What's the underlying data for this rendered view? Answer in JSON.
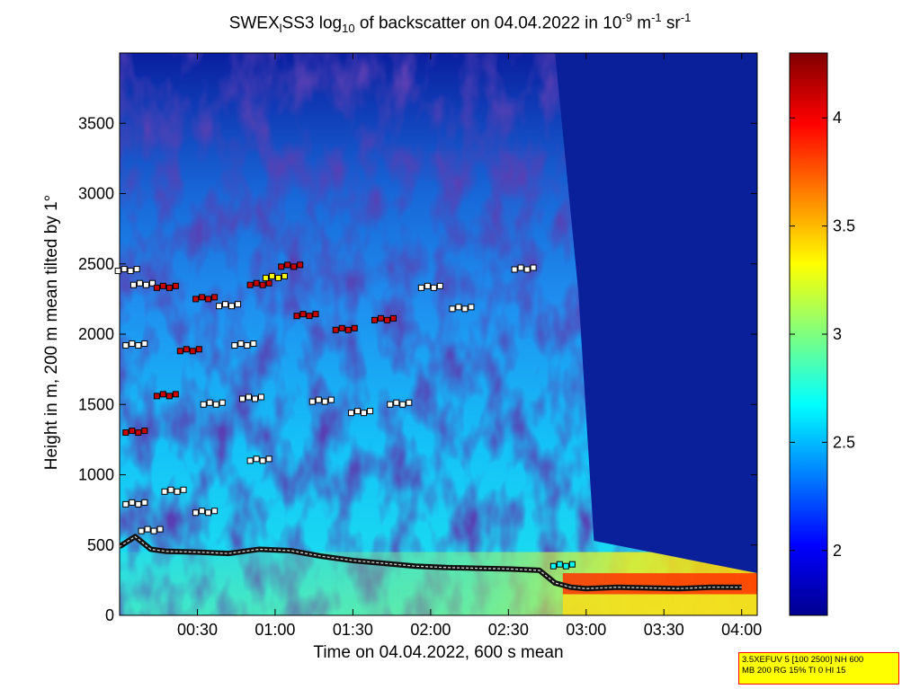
{
  "title": {
    "prefix": "SWEX",
    "sub1": "l",
    "part2": "SS3 log",
    "sub2": "10",
    "part3": " of backscatter on 04.04.2022 in 10",
    "sup1": "-9",
    "part4": " m",
    "sup2": "-1",
    "part5": " sr",
    "sup3": "-1"
  },
  "chart_data": {
    "type": "heatmap",
    "xlabel": "Time on 04.04.2022, 600 s mean",
    "ylabel": "Height in m, 200 m mean tilted by 1°",
    "xlim_hours": [
      0.0,
      4.1
    ],
    "ylim": [
      0,
      4000
    ],
    "x_ticks": [
      {
        "hours": 0.5,
        "label": "00:30"
      },
      {
        "hours": 1.0,
        "label": "01:00"
      },
      {
        "hours": 1.5,
        "label": "01:30"
      },
      {
        "hours": 2.0,
        "label": "02:00"
      },
      {
        "hours": 2.5,
        "label": "02:30"
      },
      {
        "hours": 3.0,
        "label": "03:00"
      },
      {
        "hours": 3.5,
        "label": "03:30"
      },
      {
        "hours": 4.0,
        "label": "04:00"
      }
    ],
    "y_ticks": [
      0,
      500,
      1000,
      1500,
      2000,
      2500,
      3000,
      3500
    ],
    "colorbar": {
      "range": [
        1.7,
        4.3
      ],
      "ticks": [
        {
          "value": 2,
          "label": "2"
        },
        {
          "value": 2.5,
          "label": "2.5"
        },
        {
          "value": 3,
          "label": "3"
        },
        {
          "value": 3.5,
          "label": "3.5"
        },
        {
          "value": 4,
          "label": "4"
        }
      ],
      "colormap": "jet"
    },
    "cloud_base_top_hours": [
      0.0,
      0.4,
      0.8,
      1.2,
      1.6,
      2.0,
      2.4,
      2.8,
      2.95,
      3.05,
      4.1
    ],
    "cloud_base_top_height": [
      4000,
      4000,
      4000,
      4000,
      4000,
      4000,
      4000,
      4000,
      2300,
      530,
      300
    ],
    "boundary_layer_line": {
      "hours": [
        0.0,
        0.1,
        0.2,
        0.3,
        0.5,
        0.7,
        0.9,
        1.1,
        1.3,
        1.5,
        1.7,
        1.9,
        2.1,
        2.3,
        2.5,
        2.7,
        2.8,
        2.9,
        3.0,
        3.2,
        3.4,
        3.6,
        3.8,
        4.0
      ],
      "height": [
        490,
        560,
        470,
        455,
        450,
        440,
        470,
        460,
        420,
        390,
        370,
        350,
        340,
        335,
        330,
        320,
        230,
        200,
        190,
        200,
        195,
        190,
        200,
        200
      ]
    },
    "aerosol_layer_markers": [
      {
        "hours": 0.05,
        "height": 2450,
        "color": "#ffffff"
      },
      {
        "hours": 0.15,
        "height": 2350,
        "color": "#ffffff"
      },
      {
        "hours": 0.3,
        "height": 2330,
        "color": "#cc0000"
      },
      {
        "hours": 0.55,
        "height": 2250,
        "color": "#cc0000"
      },
      {
        "hours": 0.7,
        "height": 2200,
        "color": "#ffffff"
      },
      {
        "hours": 0.9,
        "height": 2350,
        "color": "#cc0000"
      },
      {
        "hours": 1.0,
        "height": 2400,
        "color": "#ffff00"
      },
      {
        "hours": 1.1,
        "height": 2480,
        "color": "#cc0000"
      },
      {
        "hours": 2.0,
        "height": 2330,
        "color": "#ffffff"
      },
      {
        "hours": 2.2,
        "height": 2180,
        "color": "#ffffff"
      },
      {
        "hours": 2.6,
        "height": 2460,
        "color": "#ffffff"
      },
      {
        "hours": 0.1,
        "height": 1920,
        "color": "#ffffff"
      },
      {
        "hours": 0.45,
        "height": 1880,
        "color": "#cc0000"
      },
      {
        "hours": 0.8,
        "height": 1920,
        "color": "#ffffff"
      },
      {
        "hours": 1.2,
        "height": 2130,
        "color": "#cc0000"
      },
      {
        "hours": 1.45,
        "height": 2030,
        "color": "#cc0000"
      },
      {
        "hours": 1.7,
        "height": 2100,
        "color": "#cc0000"
      },
      {
        "hours": 0.3,
        "height": 1560,
        "color": "#cc0000"
      },
      {
        "hours": 0.6,
        "height": 1500,
        "color": "#ffffff"
      },
      {
        "hours": 0.85,
        "height": 1540,
        "color": "#ffffff"
      },
      {
        "hours": 1.3,
        "height": 1520,
        "color": "#ffffff"
      },
      {
        "hours": 1.55,
        "height": 1440,
        "color": "#ffffff"
      },
      {
        "hours": 1.8,
        "height": 1500,
        "color": "#ffffff"
      },
      {
        "hours": 0.1,
        "height": 1300,
        "color": "#cc0000"
      },
      {
        "hours": 0.9,
        "height": 1100,
        "color": "#ffffff"
      },
      {
        "hours": 0.35,
        "height": 880,
        "color": "#ffffff"
      },
      {
        "hours": 0.55,
        "height": 730,
        "color": "#ffffff"
      },
      {
        "hours": 0.1,
        "height": 790,
        "color": "#ffffff"
      },
      {
        "hours": 0.2,
        "height": 600,
        "color": "#ffffff"
      },
      {
        "hours": 2.85,
        "height": 350,
        "color": "#00ffff"
      }
    ]
  },
  "info_box": {
    "line1": "3.5XEFUV 5 [100 2500] NH 600",
    "line2": "MB 200 RG 15% TI 0 HI 15"
  },
  "colors": {
    "axis": "#000000",
    "background": "#ffffff",
    "info_box_bg": "#ffff00",
    "info_box_border": "#ff0000"
  }
}
